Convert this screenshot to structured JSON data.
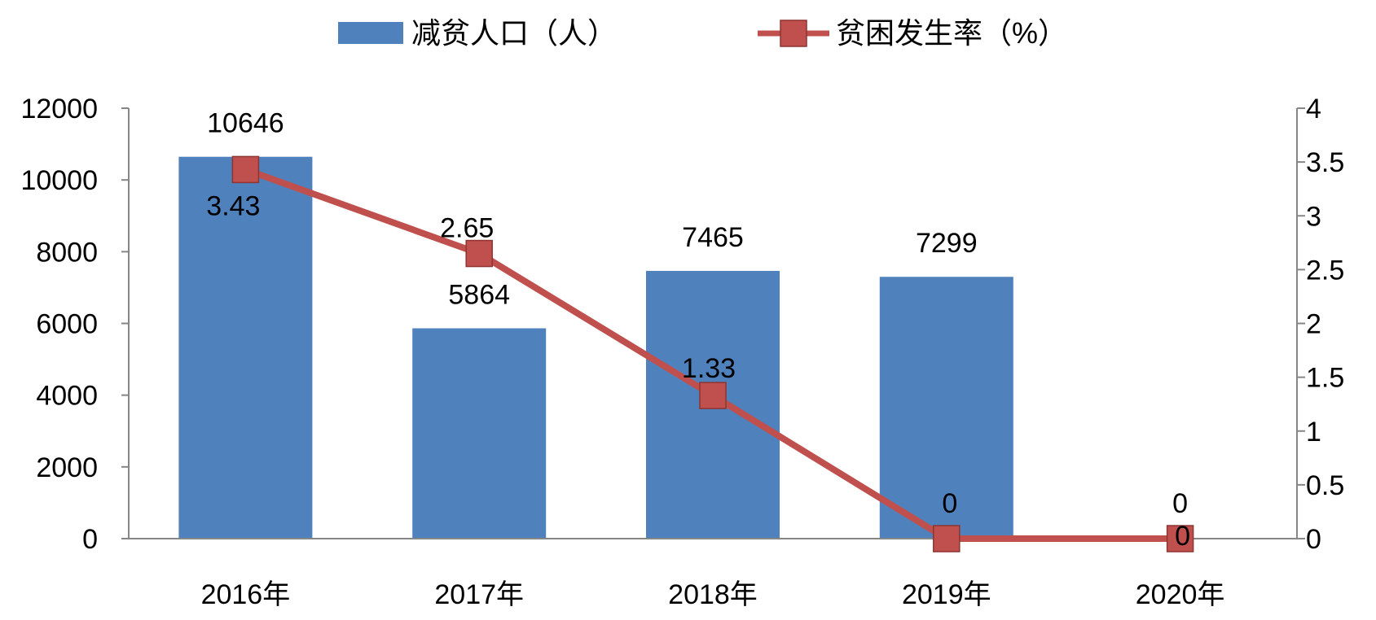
{
  "chart_data": {
    "type": "bar",
    "categories": [
      "2016年",
      "2017年",
      "2018年",
      "2019年",
      "2020年"
    ],
    "series": [
      {
        "name": "减贫人口（人）",
        "type": "bar",
        "axis": "left",
        "color": "#4F81BD",
        "values": [
          10646,
          5864,
          7465,
          7299,
          0
        ],
        "labels": [
          "10646",
          "5864",
          "7465",
          "7299",
          "0"
        ]
      },
      {
        "name": "贫困发生率（%）",
        "type": "line",
        "axis": "right",
        "color": "#C0504D",
        "values": [
          3.43,
          2.65,
          1.33,
          0,
          0
        ],
        "labels": [
          "3.43",
          "2.65",
          "1.33",
          "0",
          "0"
        ]
      }
    ],
    "y_left": {
      "min": 0,
      "max": 12000,
      "ticks": [
        "0",
        "2000",
        "4000",
        "6000",
        "8000",
        "10000",
        "12000"
      ]
    },
    "y_right": {
      "min": 0,
      "max": 4,
      "ticks": [
        "0",
        "0.5",
        "1",
        "1.5",
        "2",
        "2.5",
        "3",
        "3.5",
        "4"
      ]
    },
    "legend": "top-center",
    "grid": false
  }
}
